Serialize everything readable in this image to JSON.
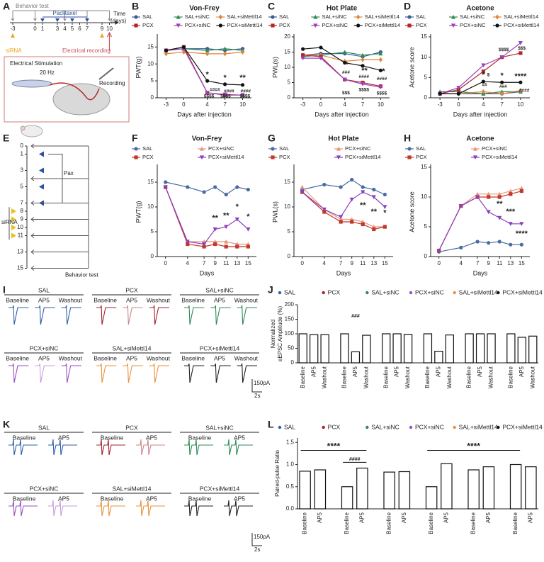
{
  "panel_labels": [
    "A",
    "B",
    "C",
    "D",
    "E",
    "F",
    "G",
    "H",
    "I",
    "J",
    "K",
    "L"
  ],
  "diagram_a": {
    "behavior_test": "Behavior test",
    "paclitaxel": "Paclitaxel",
    "time": "Time",
    "time_unit": "(days)",
    "days": [
      -3,
      0,
      1,
      3,
      4,
      5,
      6,
      7,
      9,
      10
    ],
    "sirna": "siRNA",
    "electrical_recording": "Electrical recording",
    "stimulation": "Electrical Stimulation",
    "frequency": "20 Hz",
    "recording": "Recording"
  },
  "diagram_e": {
    "days": [
      0,
      1,
      3,
      5,
      7,
      8,
      9,
      10,
      11,
      13,
      15
    ],
    "pax": "Pax",
    "sirna": "siRNA",
    "behavior_test": "Behavior test"
  },
  "traces_i": {
    "groups": [
      {
        "name": "SAL",
        "color": "#2f5fa8"
      },
      {
        "name": "PCX",
        "color": "#a3232b"
      },
      {
        "name": "SAL+siNC",
        "color": "#2e8b57"
      },
      {
        "name": "PCX+siNC",
        "color": "#9a4fbf"
      },
      {
        "name": "SAL+siMettl14",
        "color": "#e8923a"
      },
      {
        "name": "PCX+siMettl14",
        "color": "#222222"
      }
    ],
    "conditions": [
      "Baseline",
      "AP5",
      "Washout"
    ],
    "scale_y": "150pA",
    "scale_x": "2s"
  },
  "traces_k": {
    "groups": [
      {
        "name": "SAL",
        "color": "#2f5fa8"
      },
      {
        "name": "PCX",
        "color": "#a3232b"
      },
      {
        "name": "SAL+siNC",
        "color": "#2e8b57"
      },
      {
        "name": "PCX+siNC",
        "color": "#9a4fbf"
      },
      {
        "name": "SAL+siMettl14",
        "color": "#e8923a"
      },
      {
        "name": "PCX+siMettl14",
        "color": "#222222"
      }
    ],
    "conditions": [
      "Baseline",
      "AP5"
    ],
    "scale_y": "150pA",
    "scale_x": "2s"
  },
  "chart_data": [
    {
      "type": "line",
      "title": "Von-Frey",
      "xlabel": "Days after injection",
      "ylabel": "PWT(g)",
      "x": [
        -3,
        0,
        4,
        7,
        10
      ],
      "xlim": [
        -4.5,
        11.5
      ],
      "xticks": [
        -3,
        0,
        4,
        7,
        10
      ],
      "ylim": [
        0,
        18
      ],
      "yticks": [
        0,
        5,
        10,
        15
      ],
      "legend_columns": 3,
      "series": [
        {
          "name": "SAL",
          "color": "#3a5ba0",
          "marker": "circle",
          "values": [
            14,
            14.5,
            14.5,
            14,
            14.5
          ]
        },
        {
          "name": "SAL+siNC",
          "color": "#2e8b57",
          "marker": "triangle",
          "values": [
            14,
            14.5,
            14,
            14.5,
            14
          ]
        },
        {
          "name": "SAL+siMettl14",
          "color": "#e0853a",
          "marker": "diamond",
          "values": [
            13,
            13.5,
            13,
            13,
            13.5
          ]
        },
        {
          "name": "PCX",
          "color": "#b5262b",
          "marker": "square",
          "values": [
            14,
            15,
            1.5,
            0.8,
            0.8
          ]
        },
        {
          "name": "PCX+siNC",
          "color": "#9a3fbf",
          "marker": "triangle-down",
          "values": [
            14,
            14.5,
            1.5,
            1,
            0.8
          ]
        },
        {
          "name": "PCX+siMettl14",
          "color": "#111111",
          "marker": "circle",
          "values": [
            14,
            15,
            5,
            4,
            3.8
          ]
        }
      ],
      "annotations": [
        "*",
        "*",
        "**",
        "####",
        "####",
        "####",
        "$$$$",
        "$$$$",
        "$$$$"
      ]
    },
    {
      "type": "line",
      "title": "Hot Plate",
      "xlabel": "Days after injection",
      "ylabel": "PWL(s)",
      "x": [
        -3,
        0,
        4,
        7,
        10
      ],
      "xlim": [
        -4.5,
        11.5
      ],
      "xticks": [
        -3,
        0,
        4,
        7,
        10
      ],
      "ylim": [
        0,
        20
      ],
      "yticks": [
        0,
        5,
        10,
        15,
        20
      ],
      "legend_columns": 3,
      "series": [
        {
          "name": "SAL",
          "color": "#3a5ba0",
          "marker": "circle",
          "values": [
            14,
            14.5,
            14.5,
            13.5,
            15
          ]
        },
        {
          "name": "SAL+siNC",
          "color": "#2e8b57",
          "marker": "triangle",
          "values": [
            13.5,
            14,
            15,
            14,
            14.5
          ]
        },
        {
          "name": "SAL+siMettl14",
          "color": "#e0853a",
          "marker": "diamond",
          "values": [
            14,
            14,
            12,
            12.5,
            12.5
          ]
        },
        {
          "name": "PCX",
          "color": "#b5262b",
          "marker": "square",
          "values": [
            14,
            13.5,
            6,
            5,
            3.8
          ]
        },
        {
          "name": "PCX+siNC",
          "color": "#9a3fbf",
          "marker": "triangle-down",
          "values": [
            13,
            13,
            6,
            4.5,
            3.5
          ]
        },
        {
          "name": "PCX+siMettl14",
          "color": "#111111",
          "marker": "circle",
          "values": [
            16,
            16.5,
            11.5,
            10.5,
            9
          ]
        }
      ],
      "annotations": [
        "*",
        "**",
        "*",
        "###",
        "####",
        "####",
        "$$$",
        "$$$$",
        "$$$$"
      ]
    },
    {
      "type": "line",
      "title": "Acetone",
      "xlabel": "Days after injection",
      "ylabel": "Acetone score",
      "x": [
        -3,
        0,
        4,
        7,
        10
      ],
      "xlim": [
        -4.5,
        11.5
      ],
      "xticks": [
        -3,
        0,
        4,
        7,
        10
      ],
      "ylim": [
        0,
        15
      ],
      "yticks": [
        0,
        5,
        10,
        15
      ],
      "legend_columns": 3,
      "series": [
        {
          "name": "SAL",
          "color": "#3a5ba0",
          "marker": "circle",
          "values": [
            1,
            1,
            1,
            1,
            1.5
          ]
        },
        {
          "name": "SAL+siNC",
          "color": "#2e8b57",
          "marker": "triangle",
          "values": [
            1.5,
            1.5,
            1,
            1.5,
            1.5
          ]
        },
        {
          "name": "SAL+siMettl14",
          "color": "#e0853a",
          "marker": "diamond",
          "values": [
            1,
            1,
            1.5,
            1,
            1.8
          ]
        },
        {
          "name": "PCX",
          "color": "#b5262b",
          "marker": "square",
          "values": [
            1,
            2,
            6.5,
            10,
            11
          ]
        },
        {
          "name": "PCX+siNC",
          "color": "#9a3fbf",
          "marker": "triangle-down",
          "values": [
            1,
            2.5,
            8,
            10,
            13.5
          ]
        },
        {
          "name": "PCX+siMettl14",
          "color": "#111111",
          "marker": "circle",
          "values": [
            1,
            1,
            4,
            3.8,
            3.8
          ]
        }
      ],
      "annotations": [
        "*",
        "*",
        "****",
        "$",
        "##",
        "###",
        "####",
        "$$$$",
        "$$$"
      ]
    },
    {
      "type": "line",
      "title": "Von-Frey",
      "xlabel": "Days",
      "ylabel": "PWT(g)",
      "x": [
        0,
        4,
        7,
        9,
        11,
        13,
        15
      ],
      "xlim": [
        -1.5,
        16.5
      ],
      "xticks": [
        0,
        4,
        7,
        9,
        11,
        13,
        15
      ],
      "ylim": [
        0,
        18
      ],
      "yticks": [
        0,
        5,
        10,
        15
      ],
      "legend_columns": 2,
      "series": [
        {
          "name": "SAL",
          "color": "#4a6aa5",
          "marker": "circle",
          "values": [
            15,
            14,
            13,
            14,
            12.5,
            14,
            13.5
          ]
        },
        {
          "name": "PCX+siNC",
          "color": "#e8957f",
          "marker": "triangle",
          "values": [
            14,
            3,
            3,
            3,
            3,
            2.5,
            2.5
          ]
        },
        {
          "name": "PCX",
          "color": "#c0392b",
          "marker": "square",
          "values": [
            14,
            2.5,
            2,
            2.5,
            2,
            2,
            2
          ]
        },
        {
          "name": "PCX+siMettl14",
          "color": "#8b3fc0",
          "marker": "triangle-down",
          "values": [
            14,
            3,
            2.5,
            5.5,
            6,
            7.5,
            5.5
          ]
        }
      ],
      "annotations": [
        "**",
        "**",
        "*",
        "*"
      ]
    },
    {
      "type": "line",
      "title": "Hot Plate",
      "xlabel": "Days",
      "ylabel": "PWL(s)",
      "x": [
        0,
        4,
        7,
        9,
        11,
        13,
        15
      ],
      "xlim": [
        -1.5,
        16.5
      ],
      "xticks": [
        0,
        4,
        7,
        9,
        11,
        13,
        15
      ],
      "ylim": [
        0,
        18
      ],
      "yticks": [
        0,
        5,
        10,
        15
      ],
      "legend_columns": 2,
      "series": [
        {
          "name": "SAL",
          "color": "#4a6aa5",
          "marker": "circle",
          "values": [
            13.5,
            14.5,
            14,
            15.5,
            14,
            13.5,
            12.5
          ]
        },
        {
          "name": "PCX+siNC",
          "color": "#e8957f",
          "marker": "triangle",
          "values": [
            14,
            9.5,
            7.5,
            7.5,
            7,
            6,
            6
          ]
        },
        {
          "name": "PCX",
          "color": "#c0392b",
          "marker": "square",
          "values": [
            13,
            9,
            7,
            7,
            6.5,
            5.5,
            6
          ]
        },
        {
          "name": "PCX+siMettl14",
          "color": "#8b3fc0",
          "marker": "triangle-down",
          "values": [
            13,
            9.5,
            8,
            11.5,
            13,
            12,
            10
          ]
        }
      ],
      "annotations": [
        "**",
        "**",
        "*"
      ]
    },
    {
      "type": "line",
      "title": "Acetone",
      "xlabel": "Days",
      "ylabel": "Acetone score",
      "x": [
        0,
        4,
        7,
        9,
        11,
        13,
        15
      ],
      "xlim": [
        -1.5,
        16.5
      ],
      "xticks": [
        0,
        4,
        7,
        9,
        11,
        13,
        15
      ],
      "ylim": [
        0,
        15
      ],
      "yticks": [
        0,
        5,
        10,
        15
      ],
      "legend_columns": 2,
      "series": [
        {
          "name": "SAL",
          "color": "#4a6aa5",
          "marker": "circle",
          "values": [
            0.8,
            1.5,
            2.5,
            2.3,
            2.5,
            2,
            2
          ]
        },
        {
          "name": "PCX+siNC",
          "color": "#e8957f",
          "marker": "triangle",
          "values": [
            1,
            8.5,
            10.5,
            10.5,
            10.5,
            11,
            11.5
          ]
        },
        {
          "name": "PCX",
          "color": "#c0392b",
          "marker": "square",
          "values": [
            1,
            8.5,
            10,
            10,
            10,
            10.5,
            11
          ]
        },
        {
          "name": "PCX+siMettl14",
          "color": "#8b3fc0",
          "marker": "triangle-down",
          "values": [
            1,
            8.5,
            10,
            7.5,
            6.5,
            5.5,
            5.5
          ]
        }
      ],
      "annotations": [
        "**",
        "***",
        "****"
      ]
    },
    {
      "type": "bar",
      "ylabel": [
        "Normalized",
        "eEPSC Amplitude (%)"
      ],
      "categories": [
        "Baseline",
        "AP5",
        "Washout"
      ],
      "ylim": [
        0,
        200
      ],
      "yticks": [
        0,
        50,
        100,
        150,
        200
      ],
      "series": [
        {
          "name": "SAL",
          "color": "#2f5fa8",
          "values": [
            100,
            97,
            97
          ]
        },
        {
          "name": "PCX",
          "color": "#a3232b",
          "values": [
            100,
            38,
            95
          ]
        },
        {
          "name": "SAL+siNC",
          "color": "#2e8b57",
          "values": [
            100,
            100,
            98
          ]
        },
        {
          "name": "PCX+siNC",
          "color": "#9a4fbf",
          "values": [
            100,
            40,
            96
          ]
        },
        {
          "name": "SAL+siMettl14",
          "color": "#e8923a",
          "values": [
            100,
            100,
            100
          ]
        },
        {
          "name": "PCX+siMettl14",
          "color": "#111111",
          "values": [
            100,
            88,
            92
          ]
        }
      ],
      "annotations": [
        "###"
      ]
    },
    {
      "type": "bar",
      "ylabel": "Paired-pulse Ratio",
      "categories": [
        "Baseline",
        "AP5"
      ],
      "ylim": [
        0,
        1.6
      ],
      "yticks": [
        {
          "value": 0,
          "label": "0.0"
        },
        0.5,
        {
          "value": 1,
          "label": "1.0"
        },
        1.5
      ],
      "series": [
        {
          "name": "SAL",
          "color": "#2f5fa8",
          "values": [
            0.85,
            0.88
          ]
        },
        {
          "name": "PCX",
          "color": "#a3232b",
          "values": [
            0.5,
            0.92
          ]
        },
        {
          "name": "SAL+siNC",
          "color": "#2e8b57",
          "values": [
            0.83,
            0.84
          ]
        },
        {
          "name": "PCX+siNC",
          "color": "#9a4fbf",
          "values": [
            0.5,
            1.02
          ]
        },
        {
          "name": "SAL+siMettl14",
          "color": "#e8923a",
          "values": [
            0.88,
            0.95
          ]
        },
        {
          "name": "PCX+siMettl14",
          "color": "#111111",
          "values": [
            1.0,
            0.95
          ]
        }
      ],
      "annotations": [
        "****",
        "####",
        "****"
      ]
    }
  ]
}
